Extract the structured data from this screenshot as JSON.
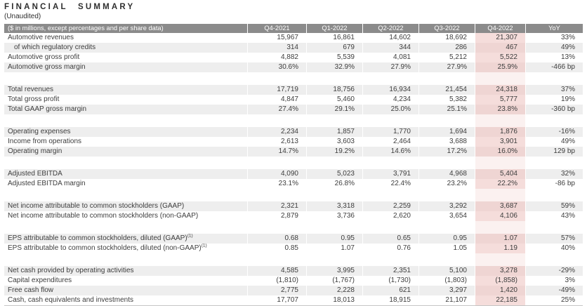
{
  "title": "FINANCIAL SUMMARY",
  "subtitle": "(Unaudited)",
  "table": {
    "header_label": "($ in millions, except percentages and per share data)",
    "columns": [
      "Q4-2021",
      "Q1-2022",
      "Q2-2022",
      "Q3-2022",
      "Q4-2022",
      "YoY"
    ],
    "highlight_column": "Q4-2022",
    "footnote_marker": "(1)",
    "colors": {
      "header_bg": "#8b8b8b",
      "header_text": "#ffffff",
      "stripe": "#eeeeee",
      "hl_white": "#f5dddb",
      "hl_stripe": "#efd5d3",
      "hl_gap": "#fbf1f0"
    },
    "sections": [
      {
        "rows": [
          {
            "label": "Automotive revenues",
            "shade": false,
            "values": [
              "15,967",
              "16,861",
              "14,602",
              "18,692",
              "21,307",
              "33%"
            ]
          },
          {
            "label": "of which regulatory credits",
            "indent": true,
            "shade": true,
            "values": [
              "314",
              "679",
              "344",
              "286",
              "467",
              "49%"
            ]
          },
          {
            "label": "Automotive gross profit",
            "shade": false,
            "values": [
              "4,882",
              "5,539",
              "4,081",
              "5,212",
              "5,522",
              "13%"
            ]
          },
          {
            "label": "Automotive gross margin",
            "shade": true,
            "values": [
              "30.6%",
              "32.9%",
              "27.9%",
              "27.9%",
              "25.9%",
              "-466 bp"
            ]
          }
        ]
      },
      {
        "rows": [
          {
            "label": "Total revenues",
            "shade": true,
            "values": [
              "17,719",
              "18,756",
              "16,934",
              "21,454",
              "24,318",
              "37%"
            ]
          },
          {
            "label": "Total gross profit",
            "shade": false,
            "values": [
              "4,847",
              "5,460",
              "4,234",
              "5,382",
              "5,777",
              "19%"
            ]
          },
          {
            "label": "Total GAAP gross margin",
            "shade": true,
            "values": [
              "27.4%",
              "29.1%",
              "25.0%",
              "25.1%",
              "23.8%",
              "-360 bp"
            ]
          }
        ]
      },
      {
        "rows": [
          {
            "label": "Operating expenses",
            "shade": true,
            "values": [
              "2,234",
              "1,857",
              "1,770",
              "1,694",
              "1,876",
              "-16%"
            ]
          },
          {
            "label": "Income from operations",
            "shade": false,
            "values": [
              "2,613",
              "3,603",
              "2,464",
              "3,688",
              "3,901",
              "49%"
            ]
          },
          {
            "label": "Operating margin",
            "shade": true,
            "values": [
              "14.7%",
              "19.2%",
              "14.6%",
              "17.2%",
              "16.0%",
              "129 bp"
            ]
          }
        ]
      },
      {
        "rows": [
          {
            "label": "Adjusted EBITDA",
            "shade": true,
            "values": [
              "4,090",
              "5,023",
              "3,791",
              "4,968",
              "5,404",
              "32%"
            ]
          },
          {
            "label": "Adjusted EBITDA margin",
            "shade": false,
            "values": [
              "23.1%",
              "26.8%",
              "22.4%",
              "23.2%",
              "22.2%",
              "-86 bp"
            ]
          }
        ]
      },
      {
        "rows": [
          {
            "label": "Net income attributable to common stockholders (GAAP)",
            "shade": true,
            "values": [
              "2,321",
              "3,318",
              "2,259",
              "3,292",
              "3,687",
              "59%"
            ]
          },
          {
            "label": "Net income attributable to common stockholders (non-GAAP)",
            "shade": false,
            "values": [
              "2,879",
              "3,736",
              "2,620",
              "3,654",
              "4,106",
              "43%"
            ]
          }
        ]
      },
      {
        "rows": [
          {
            "label": "EPS attributable to common stockholders, diluted (GAAP)",
            "sup": "(1)",
            "shade": true,
            "values": [
              "0.68",
              "0.95",
              "0.65",
              "0.95",
              "1.07",
              "57%"
            ]
          },
          {
            "label": "EPS attributable to common stockholders, diluted (non-GAAP)",
            "sup": "(1)",
            "shade": false,
            "values": [
              "0.85",
              "1.07",
              "0.76",
              "1.05",
              "1.19",
              "40%"
            ]
          }
        ]
      },
      {
        "rows": [
          {
            "label": "Net cash provided by operating activities",
            "shade": true,
            "values": [
              "4,585",
              "3,995",
              "2,351",
              "5,100",
              "3,278",
              "-29%"
            ]
          },
          {
            "label": "Capital expenditures",
            "shade": false,
            "values": [
              "(1,810)",
              "(1,767)",
              "(1,730)",
              "(1,803)",
              "(1,858)",
              "3%"
            ]
          },
          {
            "label": "Free cash flow",
            "shade": true,
            "values": [
              "2,775",
              "2,228",
              "621",
              "3,297",
              "1,420",
              "-49%"
            ]
          },
          {
            "label": "Cash, cash equivalents and investments",
            "shade": false,
            "values": [
              "17,707",
              "18,013",
              "18,915",
              "21,107",
              "22,185",
              "25%"
            ]
          }
        ]
      }
    ]
  }
}
